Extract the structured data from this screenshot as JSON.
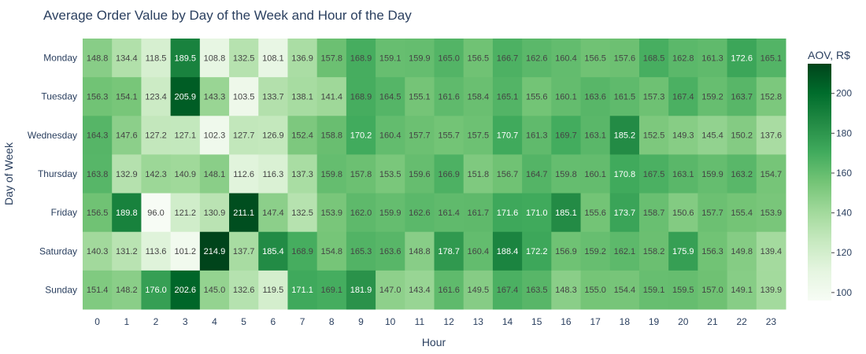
{
  "chart_data": {
    "type": "heatmap",
    "title": "Average Order Value by Day of the Week and Hour of the Day",
    "xlabel": "Hour",
    "ylabel": "Day of Week",
    "x": [
      "0",
      "1",
      "2",
      "3",
      "4",
      "5",
      "6",
      "7",
      "8",
      "9",
      "10",
      "11",
      "12",
      "13",
      "14",
      "15",
      "16",
      "17",
      "18",
      "19",
      "20",
      "21",
      "22",
      "23"
    ],
    "y": [
      "Monday",
      "Tuesday",
      "Wednesday",
      "Thursday",
      "Friday",
      "Saturday",
      "Sunday"
    ],
    "z": [
      [
        148.8,
        134.4,
        118.5,
        189.5,
        108.8,
        132.5,
        108.1,
        136.9,
        157.8,
        168.9,
        159.1,
        159.9,
        165.0,
        156.5,
        166.7,
        162.6,
        160.4,
        156.5,
        157.6,
        168.5,
        162.8,
        161.3,
        172.6,
        165.1
      ],
      [
        156.3,
        154.1,
        123.4,
        205.9,
        143.3,
        103.5,
        133.7,
        138.1,
        141.4,
        168.9,
        164.5,
        155.1,
        161.6,
        158.4,
        165.1,
        155.6,
        160.1,
        163.6,
        161.5,
        157.3,
        167.4,
        159.2,
        163.7,
        152.8
      ],
      [
        164.3,
        147.6,
        127.2,
        127.1,
        102.3,
        127.7,
        126.9,
        152.4,
        158.8,
        170.2,
        160.4,
        157.7,
        155.7,
        157.5,
        170.7,
        161.3,
        169.7,
        163.1,
        185.2,
        152.5,
        149.3,
        145.4,
        150.2,
        137.6
      ],
      [
        163.8,
        132.9,
        142.3,
        140.9,
        148.1,
        112.6,
        116.3,
        137.3,
        159.8,
        157.8,
        153.5,
        159.6,
        166.9,
        151.8,
        156.7,
        164.7,
        159.8,
        160.1,
        170.8,
        167.5,
        163.1,
        159.9,
        163.2,
        154.7
      ],
      [
        156.5,
        189.8,
        96.0,
        121.2,
        130.9,
        211.1,
        147.4,
        132.5,
        153.9,
        162.0,
        159.9,
        162.6,
        161.4,
        161.7,
        171.6,
        171.0,
        185.1,
        155.6,
        173.7,
        158.7,
        150.6,
        157.7,
        155.4,
        153.9
      ],
      [
        140.3,
        131.2,
        113.6,
        101.2,
        214.9,
        137.7,
        185.4,
        168.9,
        154.8,
        165.3,
        163.6,
        148.8,
        178.7,
        160.4,
        188.4,
        172.2,
        156.9,
        159.2,
        162.1,
        158.2,
        175.9,
        156.3,
        149.8,
        139.4
      ],
      [
        151.4,
        148.2,
        176.0,
        202.6,
        145.0,
        132.6,
        119.5,
        171.1,
        169.1,
        181.9,
        147.0,
        143.4,
        161.6,
        149.5,
        167.4,
        163.5,
        148.3,
        155.0,
        154.4,
        159.1,
        159.5,
        157.0,
        149.1,
        139.9
      ]
    ],
    "zmin": 96.0,
    "zmax": 214.9,
    "colorscale": "Greens",
    "colorbar": {
      "title": "AOV, R$",
      "ticks": [
        100,
        120,
        140,
        160,
        180,
        200
      ]
    },
    "colors": {
      "title": "#2a3f5f",
      "axis_text": "#2a3f5f",
      "scale": [
        "#f7fcf5",
        "#e5f5e0",
        "#c7e9c0",
        "#a1d99b",
        "#74c476",
        "#41ab5d",
        "#238b45",
        "#006d2c",
        "#00441b"
      ]
    }
  }
}
